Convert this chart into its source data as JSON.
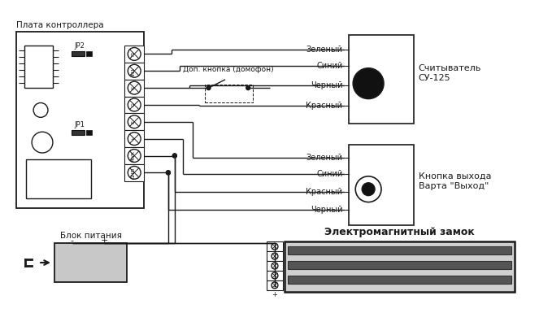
{
  "bg_color": "#ffffff",
  "lc": "#1a1a1a",
  "texts": {
    "plata_label": "Плата контроллера",
    "blok_label": "Блок питания",
    "schit_label": "Считыватель\nСУ-125",
    "knopka_label": "Кнопка выхода\nВарта \"Выход\"",
    "zamok_label": "Электромагнитный замок",
    "dop_knopka": "Доп. кнопка (домофон)",
    "zeleny1": "Зеленый",
    "siniy1": "Синий",
    "cherny1": "Черный",
    "krasny1": "Красный",
    "zeleny2": "Зеленый",
    "siniy2": "Синий",
    "krasny2": "Красный",
    "cherny2": "Черный",
    "jp1": "JP1",
    "jp2": "JP2",
    "minus_sign": "-",
    "plus_sign": "+"
  }
}
